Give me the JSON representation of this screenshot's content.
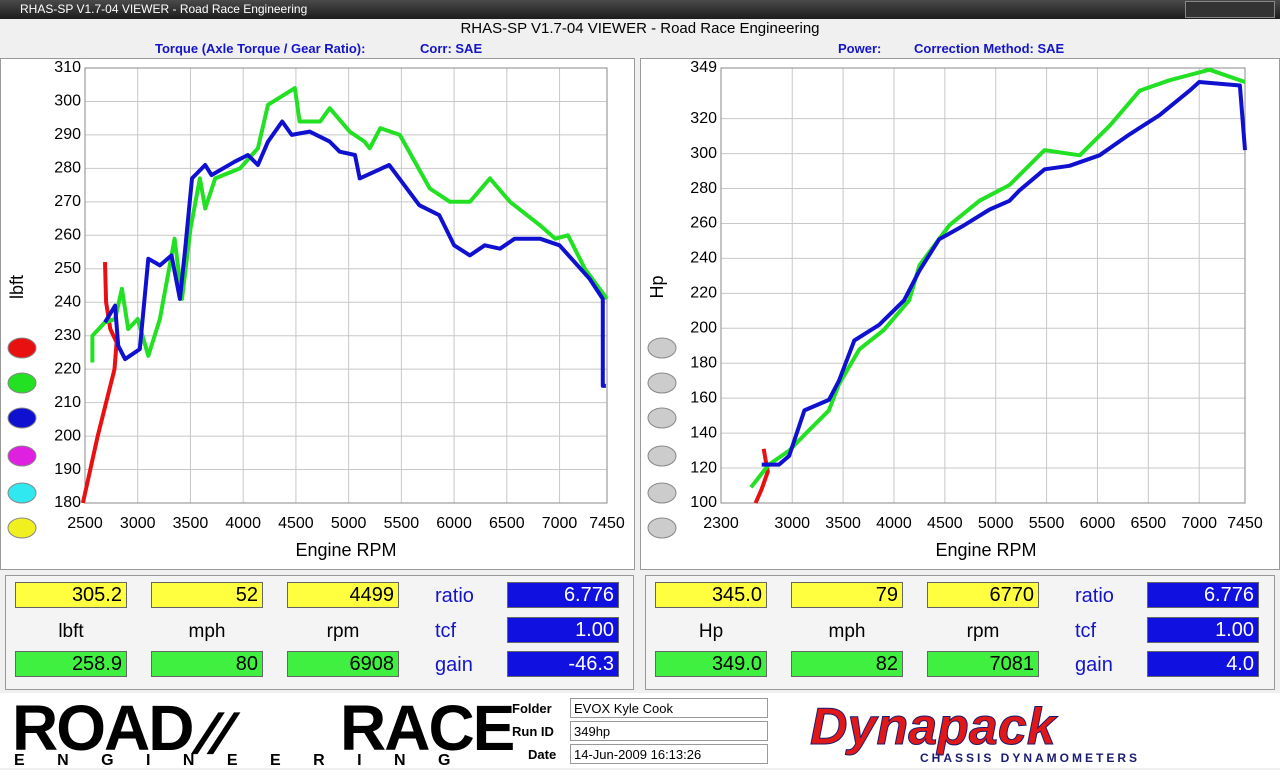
{
  "window_title": "RHAS-SP V1.7-04  VIEWER - Road Race Engineering",
  "header": {
    "title": "RHAS-SP V1.7-04  VIEWER - Road Race Engineering",
    "left_label": "Torque (Axle Torque / Gear Ratio):",
    "left_corr": "Corr: SAE",
    "right_label": "Power:",
    "right_corr": "Correction Method: SAE"
  },
  "chart_data": [
    {
      "type": "line",
      "xlabel": "Engine RPM",
      "ylabel": "lbft",
      "xlim": [
        2500,
        7450
      ],
      "ylim": [
        180,
        310
      ],
      "xticks": [
        2500,
        3000,
        3500,
        4000,
        4500,
        5000,
        5500,
        6000,
        6500,
        7000,
        7450
      ],
      "yticks": [
        180,
        190,
        200,
        210,
        220,
        230,
        240,
        250,
        260,
        270,
        280,
        290,
        300,
        310
      ],
      "grid": true,
      "series": [
        {
          "color": "#e81010",
          "x": [
            2480,
            2550,
            2620,
            2700,
            2780,
            2800,
            2740,
            2700,
            2690
          ],
          "values": [
            180,
            190,
            200,
            210,
            220,
            228,
            232,
            240,
            252
          ]
        },
        {
          "color": "#22e022",
          "x": [
            2570,
            2570,
            2690,
            2785,
            2850,
            2910,
            3000,
            3100,
            3210,
            3350,
            3420,
            3500,
            3590,
            3640,
            3735,
            3970,
            4140,
            4235,
            4490,
            4535,
            4730,
            4820,
            5010,
            5150,
            5200,
            5300,
            5485,
            5770,
            5960,
            6150,
            6340,
            6530,
            6815,
            6960,
            7080,
            7240,
            7450
          ],
          "values": [
            222,
            230,
            234,
            235,
            244,
            232,
            235,
            224,
            235,
            259,
            241,
            262,
            277,
            268,
            277,
            280,
            286,
            299,
            304,
            294,
            294,
            298,
            291,
            288,
            286,
            292,
            290,
            274,
            270,
            270,
            277,
            270,
            263,
            259,
            260,
            250,
            241
          ]
        },
        {
          "color": "#1010d0",
          "x": [
            2690,
            2785,
            2815,
            2880,
            3020,
            3100,
            3210,
            3320,
            3400,
            3450,
            3515,
            3640,
            3700,
            3920,
            4045,
            4140,
            4235,
            4370,
            4460,
            4630,
            4820,
            4915,
            5060,
            5105,
            5385,
            5480,
            5670,
            5860,
            6000,
            6150,
            6290,
            6435,
            6575,
            6815,
            7000,
            7285,
            7410,
            7410,
            7440
          ],
          "values": [
            234,
            239,
            227,
            223,
            226,
            253,
            251,
            254,
            241,
            256,
            277,
            281,
            278,
            282,
            284,
            281,
            288,
            294,
            290,
            291,
            288,
            285,
            284,
            277,
            281,
            277,
            269,
            266,
            257,
            254,
            257,
            256,
            259,
            259,
            257,
            247,
            241,
            215,
            215
          ]
        }
      ]
    },
    {
      "type": "line",
      "xlabel": "Engine RPM",
      "ylabel": "Hp",
      "xlim": [
        2300,
        7450
      ],
      "ylim": [
        100,
        349
      ],
      "xticks": [
        2300,
        3000,
        3500,
        4000,
        4500,
        5000,
        5500,
        6000,
        6500,
        7000,
        7450
      ],
      "yticks": [
        100,
        120,
        140,
        160,
        180,
        200,
        220,
        240,
        260,
        280,
        300,
        320,
        349
      ],
      "grid": true,
      "series": [
        {
          "color": "#e81010",
          "x": [
            2640,
            2700,
            2760,
            2740,
            2720
          ],
          "values": [
            100,
            108,
            118,
            124,
            131
          ]
        },
        {
          "color": "#22e022",
          "x": [
            2595,
            2770,
            2970,
            3120,
            3360,
            3460,
            3660,
            3900,
            4150,
            4250,
            4545,
            4840,
            5135,
            5480,
            5825,
            6120,
            6415,
            6710,
            6905,
            7100,
            7450
          ],
          "values": [
            109,
            122,
            130,
            139,
            153,
            168,
            188,
            199,
            216,
            236,
            259,
            273,
            282,
            302,
            299,
            316,
            336,
            342,
            345,
            348,
            341
          ]
        },
        {
          "color": "#1010d0",
          "x": [
            2700,
            2870,
            2970,
            3120,
            3360,
            3460,
            3610,
            3855,
            4100,
            4250,
            4445,
            4690,
            4940,
            5135,
            5235,
            5480,
            5725,
            6020,
            6315,
            6610,
            6905,
            7000,
            7400,
            7450
          ],
          "values": [
            122,
            122,
            127,
            153,
            159,
            170,
            193,
            202,
            216,
            233,
            251,
            259,
            268,
            273,
            279,
            291,
            293,
            299,
            311,
            322,
            336,
            341,
            339,
            302
          ]
        }
      ]
    }
  ],
  "readouts": [
    {
      "top": [
        "305.2",
        "52",
        "4499"
      ],
      "units": [
        "lbft",
        "mph",
        "rpm"
      ],
      "bottom": [
        "258.9",
        "80",
        "6908"
      ],
      "side": [
        {
          "label": "ratio",
          "value": "6.776"
        },
        {
          "label": "tcf",
          "value": "1.00"
        },
        {
          "label": "gain",
          "value": "-46.3"
        }
      ]
    },
    {
      "top": [
        "345.0",
        "79",
        "6770"
      ],
      "units": [
        "Hp",
        "mph",
        "rpm"
      ],
      "bottom": [
        "349.0",
        "82",
        "7081"
      ],
      "side": [
        {
          "label": "ratio",
          "value": "6.776"
        },
        {
          "label": "tcf",
          "value": "1.00"
        },
        {
          "label": "gain",
          "value": "4.0"
        }
      ]
    }
  ],
  "footer": {
    "logo_left": [
      "ROAD",
      "RACE"
    ],
    "logo_left_sub": "E N G I N E E R I N G",
    "fields": [
      {
        "label": "Folder",
        "value": "EVOX Kyle Cook"
      },
      {
        "label": "Run ID",
        "value": "349hp"
      },
      {
        "label": "Date",
        "value": "14-Jun-2009  16:13:26"
      }
    ],
    "logo_right": "Dynapack",
    "logo_right_sub": "CHASSIS DYNAMOMETERS"
  }
}
